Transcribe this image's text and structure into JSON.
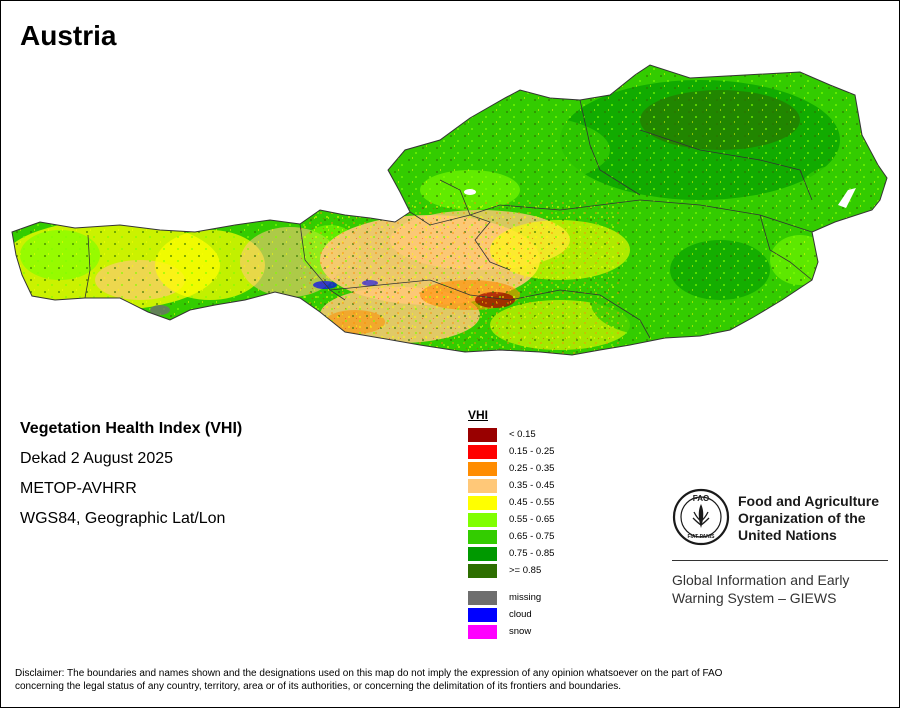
{
  "map": {
    "title": "Austria",
    "vhi_title": "Vegetation Health Index (VHI)",
    "period": "Dekad 2 August 2025",
    "sensor": "METOP-AVHRR",
    "projection": "WGS84, Geographic Lat/Lon"
  },
  "legend": {
    "title": "VHI",
    "classes": [
      {
        "label": "< 0.15",
        "color": "#990000"
      },
      {
        "label": "0.15 - 0.25",
        "color": "#ff0000"
      },
      {
        "label": "0.25 - 0.35",
        "color": "#ff8c00"
      },
      {
        "label": "0.35 - 0.45",
        "color": "#ffc878"
      },
      {
        "label": "0.45 - 0.55",
        "color": "#ffff00"
      },
      {
        "label": "0.55 - 0.65",
        "color": "#80ff00"
      },
      {
        "label": "0.65 - 0.75",
        "color": "#33cc00"
      },
      {
        "label": "0.75 - 0.85",
        "color": "#009900"
      },
      {
        "label": ">= 0.85",
        "color": "#2d6e00"
      }
    ],
    "other": [
      {
        "label": "missing",
        "color": "#6e6e6e"
      },
      {
        "label": "cloud",
        "color": "#0000ff"
      },
      {
        "label": "snow",
        "color": "#ff00ff"
      }
    ]
  },
  "org": {
    "logo_text": "FAO",
    "logo_motto": "FIAT PANIS",
    "name_line1": "Food and Agriculture",
    "name_line2": "Organization of the",
    "name_line3": "United Nations",
    "giews_line1": "Global Information and Early",
    "giews_line2": "Warning System – GIEWS"
  },
  "disclaimer": {
    "line1": "Disclaimer: The boundaries and names shown and the designations used on this map do not imply the expression of any opinion whatsoever on the part of FAO",
    "line2": "concerning the legal status of any country, territory, area or of its authorities, or concerning the delimitation of its frontiers and boundaries."
  }
}
